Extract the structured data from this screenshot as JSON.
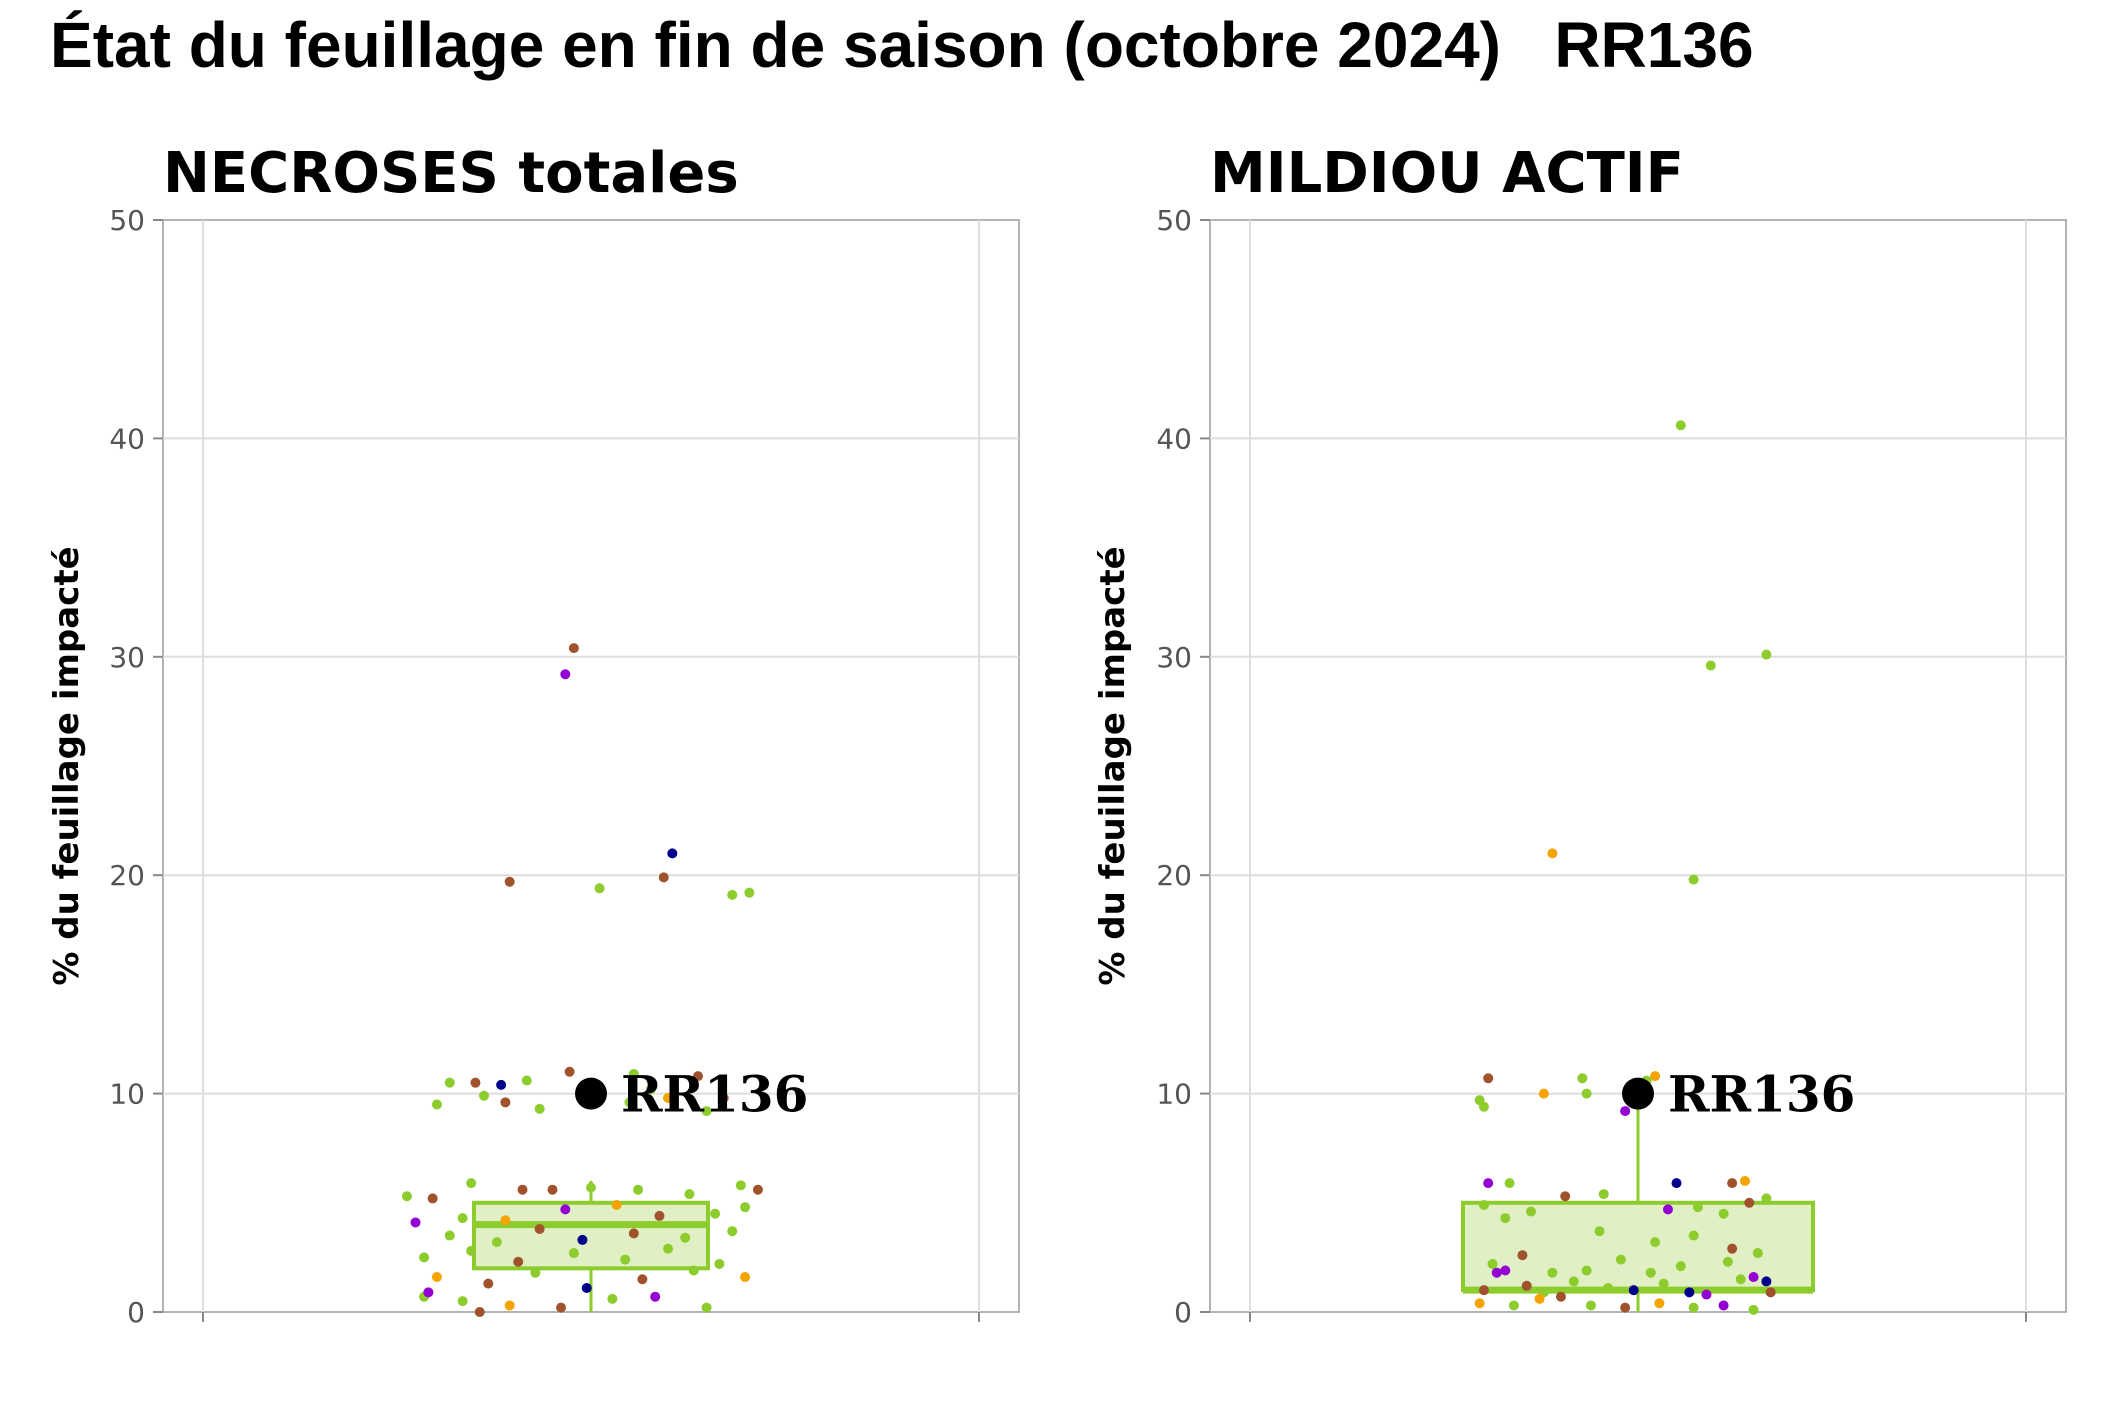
{
  "title": "État du feuillage en fin de saison (octobre 2024)   RR136",
  "chart_data": [
    {
      "type": "box",
      "title": "NECROSES totales",
      "xlabel": "",
      "ylabel": "% du feuillage impacté",
      "ylim": [
        0,
        50
      ],
      "yticks": [
        0,
        10,
        20,
        30,
        40,
        50
      ],
      "grid": true,
      "box": {
        "q1": 2,
        "median": 4,
        "q3": 5,
        "whisker_low": 0,
        "whisker_high": 6,
        "fill": "#e0f0c4",
        "stroke": "#8ccc2c"
      },
      "highlight": {
        "label": "RR136",
        "value": 10
      },
      "points": [
        {
          "x": -0.04,
          "y": 30.4,
          "color": "#a0522d"
        },
        {
          "x": -0.06,
          "y": 29.2,
          "color": "#9400d3"
        },
        {
          "x": 0.19,
          "y": 21.0,
          "color": "#00008b"
        },
        {
          "x": -0.19,
          "y": 19.7,
          "color": "#a0522d"
        },
        {
          "x": 0.02,
          "y": 19.4,
          "color": "#8ccc2c"
        },
        {
          "x": 0.17,
          "y": 19.9,
          "color": "#a0522d"
        },
        {
          "x": 0.33,
          "y": 19.1,
          "color": "#8ccc2c"
        },
        {
          "x": 0.37,
          "y": 19.2,
          "color": "#8ccc2c"
        },
        {
          "x": -0.33,
          "y": 10.5,
          "color": "#8ccc2c"
        },
        {
          "x": -0.27,
          "y": 10.5,
          "color": "#a0522d"
        },
        {
          "x": -0.21,
          "y": 10.4,
          "color": "#00008b"
        },
        {
          "x": -0.15,
          "y": 10.6,
          "color": "#8ccc2c"
        },
        {
          "x": -0.05,
          "y": 11.0,
          "color": "#a0522d"
        },
        {
          "x": 0.1,
          "y": 10.9,
          "color": "#8ccc2c"
        },
        {
          "x": 0.25,
          "y": 10.8,
          "color": "#a0522d"
        },
        {
          "x": -0.36,
          "y": 9.5,
          "color": "#8ccc2c"
        },
        {
          "x": -0.25,
          "y": 9.9,
          "color": "#8ccc2c"
        },
        {
          "x": -0.12,
          "y": 9.3,
          "color": "#8ccc2c"
        },
        {
          "x": 0.09,
          "y": 9.6,
          "color": "#8ccc2c"
        },
        {
          "x": 0.18,
          "y": 9.8,
          "color": "#f5a300"
        },
        {
          "x": 0.27,
          "y": 9.2,
          "color": "#8ccc2c"
        },
        {
          "x": 0.31,
          "y": 9.8,
          "color": "#a0522d"
        },
        {
          "x": -0.2,
          "y": 9.6,
          "color": "#a0522d"
        },
        {
          "x": 0.14,
          "y": 10.2,
          "color": "#8ccc2c"
        },
        {
          "x": -0.43,
          "y": 5.3,
          "color": "#8ccc2c"
        },
        {
          "x": -0.37,
          "y": 5.2,
          "color": "#a0522d"
        },
        {
          "x": -0.28,
          "y": 5.9,
          "color": "#8ccc2c"
        },
        {
          "x": -0.16,
          "y": 5.6,
          "color": "#a0522d"
        },
        {
          "x": -0.09,
          "y": 5.6,
          "color": "#a0522d"
        },
        {
          "x": 0.0,
          "y": 5.7,
          "color": "#8ccc2c"
        },
        {
          "x": 0.11,
          "y": 5.6,
          "color": "#8ccc2c"
        },
        {
          "x": 0.23,
          "y": 5.4,
          "color": "#8ccc2c"
        },
        {
          "x": 0.35,
          "y": 5.8,
          "color": "#8ccc2c"
        },
        {
          "x": 0.39,
          "y": 5.6,
          "color": "#a0522d"
        },
        {
          "x": -0.41,
          "y": 4.1,
          "color": "#9400d3"
        },
        {
          "x": -0.3,
          "y": 4.3,
          "color": "#8ccc2c"
        },
        {
          "x": -0.2,
          "y": 4.2,
          "color": "#f5a300"
        },
        {
          "x": -0.06,
          "y": 4.7,
          "color": "#9400d3"
        },
        {
          "x": 0.06,
          "y": 4.9,
          "color": "#f5a300"
        },
        {
          "x": 0.16,
          "y": 4.4,
          "color": "#a0522d"
        },
        {
          "x": 0.29,
          "y": 4.5,
          "color": "#8ccc2c"
        },
        {
          "x": 0.36,
          "y": 4.8,
          "color": "#8ccc2c"
        },
        {
          "x": -0.33,
          "y": 3.5,
          "color": "#8ccc2c"
        },
        {
          "x": -0.22,
          "y": 3.2,
          "color": "#8ccc2c"
        },
        {
          "x": -0.12,
          "y": 3.8,
          "color": "#a0522d"
        },
        {
          "x": -0.02,
          "y": 3.3,
          "color": "#00008b"
        },
        {
          "x": 0.1,
          "y": 3.6,
          "color": "#a0522d"
        },
        {
          "x": 0.22,
          "y": 3.4,
          "color": "#8ccc2c"
        },
        {
          "x": 0.33,
          "y": 3.7,
          "color": "#8ccc2c"
        },
        {
          "x": -0.39,
          "y": 2.5,
          "color": "#8ccc2c"
        },
        {
          "x": -0.28,
          "y": 2.8,
          "color": "#8ccc2c"
        },
        {
          "x": -0.17,
          "y": 2.3,
          "color": "#a0522d"
        },
        {
          "x": -0.04,
          "y": 2.7,
          "color": "#8ccc2c"
        },
        {
          "x": 0.08,
          "y": 2.4,
          "color": "#8ccc2c"
        },
        {
          "x": 0.18,
          "y": 2.9,
          "color": "#8ccc2c"
        },
        {
          "x": 0.3,
          "y": 2.2,
          "color": "#8ccc2c"
        },
        {
          "x": -0.36,
          "y": 1.6,
          "color": "#f5a300"
        },
        {
          "x": -0.24,
          "y": 1.3,
          "color": "#a0522d"
        },
        {
          "x": -0.13,
          "y": 1.8,
          "color": "#8ccc2c"
        },
        {
          "x": -0.01,
          "y": 1.1,
          "color": "#00008b"
        },
        {
          "x": 0.12,
          "y": 1.5,
          "color": "#a0522d"
        },
        {
          "x": 0.24,
          "y": 1.9,
          "color": "#8ccc2c"
        },
        {
          "x": 0.36,
          "y": 1.6,
          "color": "#f5a300"
        },
        {
          "x": -0.39,
          "y": 0.7,
          "color": "#8ccc2c"
        },
        {
          "x": -0.38,
          "y": 0.9,
          "color": "#9400d3"
        },
        {
          "x": -0.3,
          "y": 0.5,
          "color": "#8ccc2c"
        },
        {
          "x": -0.19,
          "y": 0.3,
          "color": "#f5a300"
        },
        {
          "x": -0.07,
          "y": 0.2,
          "color": "#a0522d"
        },
        {
          "x": 0.05,
          "y": 0.6,
          "color": "#8ccc2c"
        },
        {
          "x": 0.15,
          "y": 0.7,
          "color": "#9400d3"
        },
        {
          "x": 0.27,
          "y": 0.2,
          "color": "#8ccc2c"
        },
        {
          "x": -0.26,
          "y": 0.0,
          "color": "#a0522d"
        }
      ]
    },
    {
      "type": "box",
      "title": "MILDIOU ACTIF",
      "xlabel": "",
      "ylabel": "% du feuillage impacté",
      "ylim": [
        0,
        50
      ],
      "yticks": [
        0,
        10,
        20,
        30,
        40,
        50
      ],
      "grid": true,
      "box": {
        "q1": 1,
        "median": 1,
        "q3": 5,
        "whisker_low": 0,
        "whisker_high": 10,
        "fill": "#e0f0c4",
        "stroke": "#8ccc2c"
      },
      "highlight": {
        "label": "RR136",
        "value": 10
      },
      "points": [
        {
          "x": 0.1,
          "y": 40.6,
          "color": "#8ccc2c"
        },
        {
          "x": 0.17,
          "y": 29.6,
          "color": "#8ccc2c"
        },
        {
          "x": 0.3,
          "y": 30.1,
          "color": "#8ccc2c"
        },
        {
          "x": -0.2,
          "y": 21.0,
          "color": "#f5a300"
        },
        {
          "x": 0.13,
          "y": 19.8,
          "color": "#8ccc2c"
        },
        {
          "x": -0.35,
          "y": 10.7,
          "color": "#a0522d"
        },
        {
          "x": -0.13,
          "y": 10.7,
          "color": "#8ccc2c"
        },
        {
          "x": 0.04,
          "y": 10.8,
          "color": "#f5a300"
        },
        {
          "x": 0.02,
          "y": 10.6,
          "color": "#8ccc2c"
        },
        {
          "x": -0.37,
          "y": 9.7,
          "color": "#8ccc2c"
        },
        {
          "x": -0.36,
          "y": 9.4,
          "color": "#8ccc2c"
        },
        {
          "x": -0.22,
          "y": 10.0,
          "color": "#f5a300"
        },
        {
          "x": -0.12,
          "y": 10.0,
          "color": "#8ccc2c"
        },
        {
          "x": -0.03,
          "y": 9.2,
          "color": "#9400d3"
        },
        {
          "x": -0.35,
          "y": 5.9,
          "color": "#9400d3"
        },
        {
          "x": -0.3,
          "y": 5.9,
          "color": "#8ccc2c"
        },
        {
          "x": -0.17,
          "y": 5.3,
          "color": "#a0522d"
        },
        {
          "x": -0.08,
          "y": 5.4,
          "color": "#8ccc2c"
        },
        {
          "x": 0.09,
          "y": 5.9,
          "color": "#00008b"
        },
        {
          "x": 0.22,
          "y": 5.9,
          "color": "#a0522d"
        },
        {
          "x": 0.25,
          "y": 6.0,
          "color": "#f5a300"
        },
        {
          "x": 0.3,
          "y": 5.2,
          "color": "#8ccc2c"
        },
        {
          "x": -0.36,
          "y": 4.9,
          "color": "#8ccc2c"
        },
        {
          "x": -0.25,
          "y": 4.6,
          "color": "#8ccc2c"
        },
        {
          "x": 0.07,
          "y": 4.7,
          "color": "#9400d3"
        },
        {
          "x": 0.14,
          "y": 4.8,
          "color": "#8ccc2c"
        },
        {
          "x": 0.2,
          "y": 4.5,
          "color": "#8ccc2c"
        },
        {
          "x": 0.26,
          "y": 5.0,
          "color": "#a0522d"
        },
        {
          "x": -0.31,
          "y": 4.3,
          "color": "#8ccc2c"
        },
        {
          "x": -0.09,
          "y": 3.7,
          "color": "#8ccc2c"
        },
        {
          "x": 0.04,
          "y": 3.2,
          "color": "#8ccc2c"
        },
        {
          "x": 0.13,
          "y": 3.5,
          "color": "#8ccc2c"
        },
        {
          "x": 0.22,
          "y": 2.9,
          "color": "#a0522d"
        },
        {
          "x": 0.28,
          "y": 2.7,
          "color": "#8ccc2c"
        },
        {
          "x": -0.34,
          "y": 2.2,
          "color": "#8ccc2c"
        },
        {
          "x": -0.27,
          "y": 2.6,
          "color": "#a0522d"
        },
        {
          "x": -0.2,
          "y": 1.8,
          "color": "#8ccc2c"
        },
        {
          "x": -0.12,
          "y": 1.9,
          "color": "#8ccc2c"
        },
        {
          "x": -0.04,
          "y": 2.4,
          "color": "#8ccc2c"
        },
        {
          "x": 0.03,
          "y": 1.8,
          "color": "#8ccc2c"
        },
        {
          "x": 0.1,
          "y": 2.1,
          "color": "#8ccc2c"
        },
        {
          "x": 0.21,
          "y": 2.3,
          "color": "#8ccc2c"
        },
        {
          "x": 0.27,
          "y": 1.6,
          "color": "#9400d3"
        },
        {
          "x": -0.31,
          "y": 1.9,
          "color": "#9400d3"
        },
        {
          "x": -0.33,
          "y": 1.8,
          "color": "#9400d3"
        },
        {
          "x": -0.26,
          "y": 1.2,
          "color": "#a0522d"
        },
        {
          "x": -0.22,
          "y": 0.9,
          "color": "#8ccc2c"
        },
        {
          "x": -0.15,
          "y": 1.4,
          "color": "#8ccc2c"
        },
        {
          "x": -0.07,
          "y": 1.1,
          "color": "#8ccc2c"
        },
        {
          "x": -0.01,
          "y": 1.0,
          "color": "#00008b"
        },
        {
          "x": 0.06,
          "y": 1.3,
          "color": "#8ccc2c"
        },
        {
          "x": 0.12,
          "y": 0.9,
          "color": "#00008b"
        },
        {
          "x": 0.16,
          "y": 0.8,
          "color": "#9400d3"
        },
        {
          "x": 0.24,
          "y": 1.5,
          "color": "#8ccc2c"
        },
        {
          "x": 0.3,
          "y": 1.4,
          "color": "#00008b"
        },
        {
          "x": -0.36,
          "y": 1.0,
          "color": "#a0522d"
        },
        {
          "x": -0.37,
          "y": 0.4,
          "color": "#f5a300"
        },
        {
          "x": -0.29,
          "y": 0.3,
          "color": "#8ccc2c"
        },
        {
          "x": -0.23,
          "y": 0.6,
          "color": "#f5a300"
        },
        {
          "x": -0.18,
          "y": 0.7,
          "color": "#a0522d"
        },
        {
          "x": -0.11,
          "y": 0.3,
          "color": "#8ccc2c"
        },
        {
          "x": -0.03,
          "y": 0.2,
          "color": "#a0522d"
        },
        {
          "x": 0.05,
          "y": 0.4,
          "color": "#f5a300"
        },
        {
          "x": 0.13,
          "y": 0.2,
          "color": "#8ccc2c"
        },
        {
          "x": 0.2,
          "y": 0.3,
          "color": "#9400d3"
        },
        {
          "x": 0.27,
          "y": 0.1,
          "color": "#8ccc2c"
        },
        {
          "x": 0.31,
          "y": 0.9,
          "color": "#a0522d"
        }
      ]
    }
  ]
}
